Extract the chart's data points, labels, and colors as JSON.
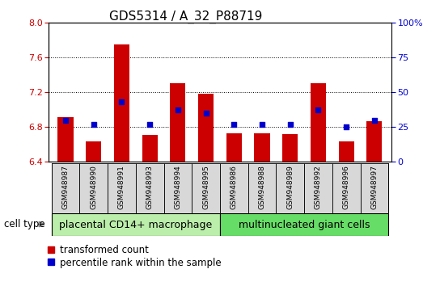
{
  "title": "GDS5314 / A_32_P88719",
  "samples": [
    "GSM948987",
    "GSM948990",
    "GSM948991",
    "GSM948993",
    "GSM948994",
    "GSM948995",
    "GSM948986",
    "GSM948988",
    "GSM948989",
    "GSM948992",
    "GSM948996",
    "GSM948997"
  ],
  "red_values": [
    6.91,
    6.63,
    7.75,
    6.71,
    7.3,
    7.18,
    6.73,
    6.73,
    6.72,
    7.3,
    6.63,
    6.87
  ],
  "blue_values": [
    30,
    27,
    43,
    27,
    37,
    35,
    27,
    27,
    27,
    37,
    25,
    30
  ],
  "ylim_left": [
    6.4,
    8.0
  ],
  "ylim_right": [
    0,
    100
  ],
  "yticks_left": [
    6.4,
    6.8,
    7.2,
    7.6,
    8.0
  ],
  "yticks_right": [
    0,
    25,
    50,
    75,
    100
  ],
  "groups": [
    {
      "label": "placental CD14+ macrophage",
      "count": 6,
      "color": "#bbeeaa"
    },
    {
      "label": "multinucleated giant cells",
      "count": 6,
      "color": "#66dd66"
    }
  ],
  "bar_color": "#cc0000",
  "marker_color": "#0000cc",
  "bar_width": 0.55,
  "background_color": "#ffffff",
  "tick_label_color_left": "#cc0000",
  "tick_label_color_right": "#0000cc",
  "title_fontsize": 11,
  "legend_labels": [
    "transformed count",
    "percentile rank within the sample"
  ],
  "cell_type_label": "cell type",
  "group_label_fontsize": 9,
  "sample_label_fontsize": 6.5,
  "sample_box_color": "#d8d8d8"
}
